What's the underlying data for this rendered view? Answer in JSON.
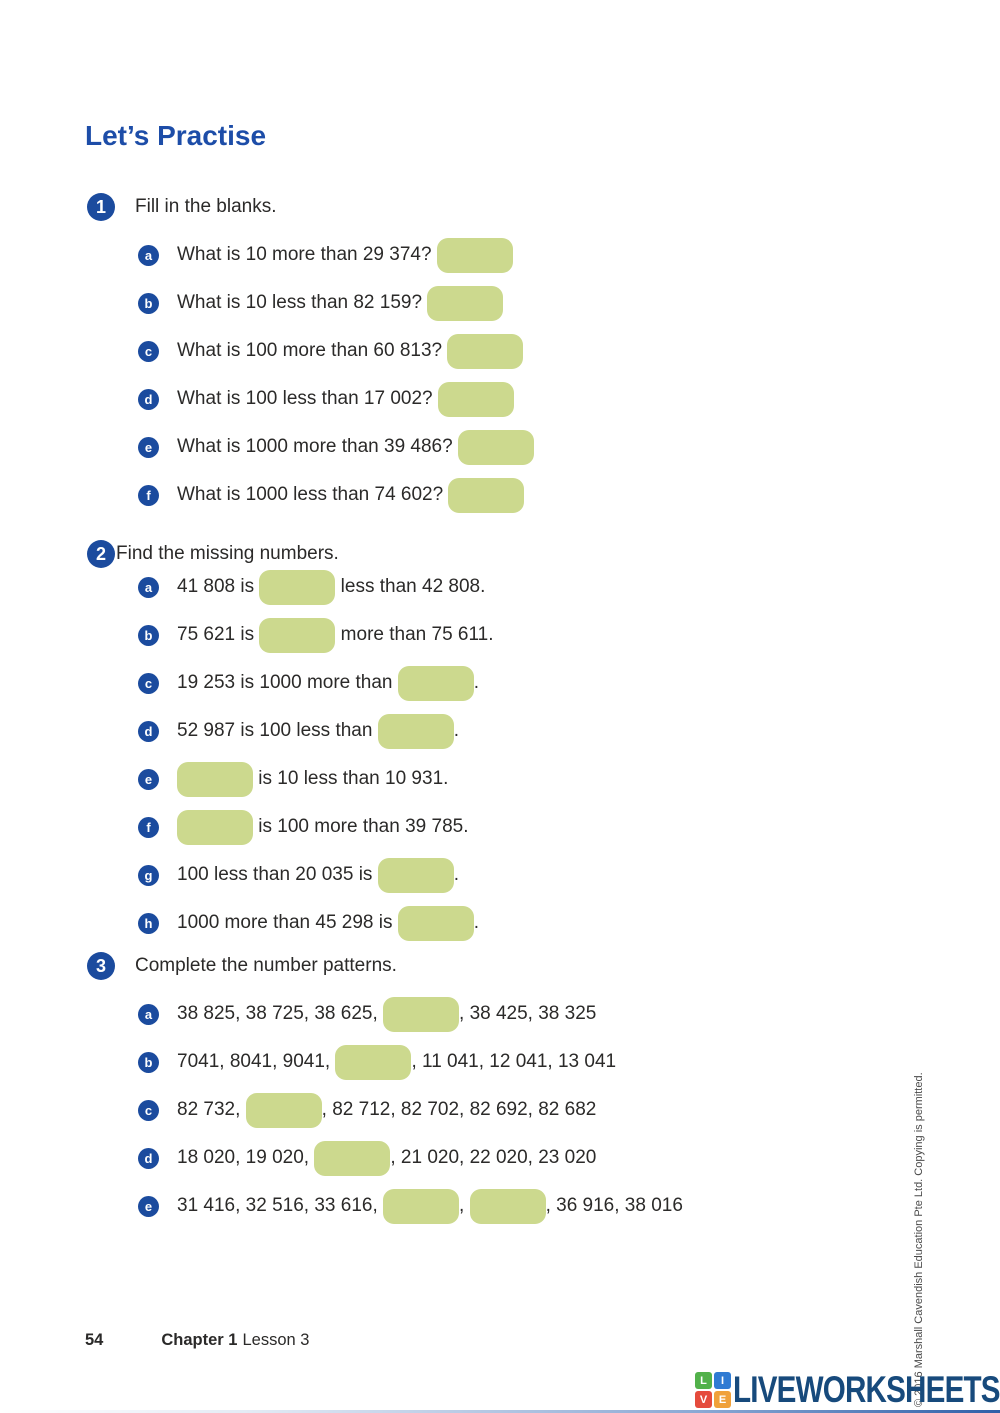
{
  "heading": "Let’s Practise",
  "questions": [
    {
      "number": "1",
      "prompt": "Fill in the blanks.",
      "items": [
        {
          "letter": "a",
          "segments": [
            {
              "text": "What is 10 more than 29 374? "
            },
            {
              "box": true
            }
          ]
        },
        {
          "letter": "b",
          "segments": [
            {
              "text": "What is 10 less than 82 159? "
            },
            {
              "box": true
            }
          ]
        },
        {
          "letter": "c",
          "segments": [
            {
              "text": "What is 100 more than 60 813? "
            },
            {
              "box": true
            }
          ]
        },
        {
          "letter": "d",
          "segments": [
            {
              "text": "What is 100 less than 17 002? "
            },
            {
              "box": true
            }
          ]
        },
        {
          "letter": "e",
          "segments": [
            {
              "text": "What is 1000 more than 39 486? "
            },
            {
              "box": true
            }
          ]
        },
        {
          "letter": "f",
          "segments": [
            {
              "text": "What is 1000 less than 74 602? "
            },
            {
              "box": true
            }
          ]
        }
      ]
    },
    {
      "number": "2",
      "prompt": "Find the missing numbers.",
      "items": [
        {
          "letter": "a",
          "segments": [
            {
              "text": "41 808 is "
            },
            {
              "box": true
            },
            {
              "text": " less than 42 808."
            }
          ]
        },
        {
          "letter": "b",
          "segments": [
            {
              "text": "75 621 is "
            },
            {
              "box": true
            },
            {
              "text": " more than 75 611."
            }
          ]
        },
        {
          "letter": "c",
          "segments": [
            {
              "text": "19 253 is 1000 more than "
            },
            {
              "box": true
            },
            {
              "text": "."
            }
          ]
        },
        {
          "letter": "d",
          "segments": [
            {
              "text": "52 987 is 100 less than "
            },
            {
              "box": true
            },
            {
              "text": "."
            }
          ]
        },
        {
          "letter": "e",
          "segments": [
            {
              "box": true
            },
            {
              "text": " is 10 less than 10 931."
            }
          ]
        },
        {
          "letter": "f",
          "segments": [
            {
              "box": true
            },
            {
              "text": " is 100 more than 39 785."
            }
          ]
        },
        {
          "letter": "g",
          "segments": [
            {
              "text": "100 less than 20 035 is "
            },
            {
              "box": true
            },
            {
              "text": "."
            }
          ]
        },
        {
          "letter": "h",
          "segments": [
            {
              "text": "1000 more than 45 298 is "
            },
            {
              "box": true
            },
            {
              "text": "."
            }
          ]
        }
      ]
    },
    {
      "number": "3",
      "prompt": "Complete the number patterns.",
      "items": [
        {
          "letter": "a",
          "segments": [
            {
              "text": "38 825, 38 725, 38 625, "
            },
            {
              "box": true
            },
            {
              "text": ", 38 425, 38 325"
            }
          ]
        },
        {
          "letter": "b",
          "segments": [
            {
              "text": "7041, 8041, 9041, "
            },
            {
              "box": true
            },
            {
              "text": ", 11 041, 12 041, 13 041"
            }
          ]
        },
        {
          "letter": "c",
          "segments": [
            {
              "text": "82 732, "
            },
            {
              "box": true
            },
            {
              "text": ", 82 712, 82 702, 82 692, 82 682"
            }
          ]
        },
        {
          "letter": "d",
          "segments": [
            {
              "text": "18 020, 19 020, "
            },
            {
              "box": true
            },
            {
              "text": ", 21 020, 22 020, 23 020"
            }
          ]
        },
        {
          "letter": "e",
          "segments": [
            {
              "text": "31 416, 32 516, 33 616, "
            },
            {
              "box": true
            },
            {
              "text": ", "
            },
            {
              "box": true
            },
            {
              "text": ", 36 916, 38 016"
            }
          ]
        }
      ]
    }
  ],
  "footer": {
    "page_number": "54",
    "chapter": "Chapter 1",
    "lesson": "Lesson 3"
  },
  "copyright": "© 2016 Marshall Cavendish Education Pte Ltd. Copying is permitted.",
  "brand": {
    "name": "LIVEWORKSHEETS",
    "tiles": [
      {
        "letter": "L",
        "color": "#52b14a"
      },
      {
        "letter": "I",
        "color": "#2f7bd3"
      },
      {
        "letter": "V",
        "color": "#e54b3c"
      },
      {
        "letter": "E",
        "color": "#f0a13a"
      }
    ]
  },
  "colors": {
    "circle_blue": "#1b4b9e",
    "heading_blue": "#1d4da8",
    "box_green": "#ccd98e",
    "brand_navy": "#174a7c"
  }
}
